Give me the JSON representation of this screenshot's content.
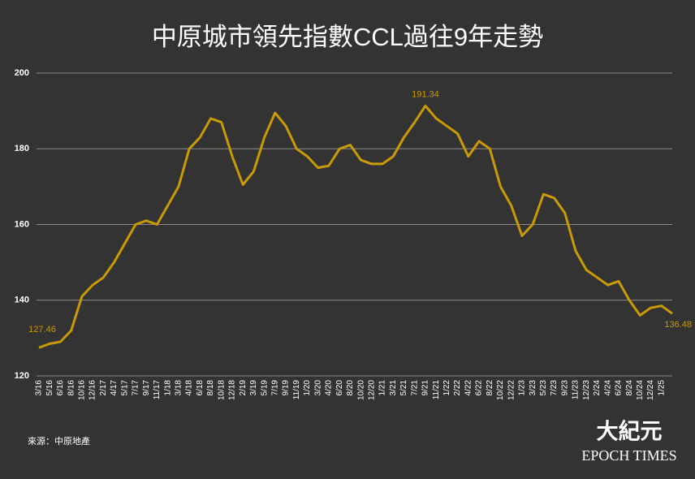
{
  "chart_data": {
    "type": "line",
    "title": "中原城市領先指數CCL過往9年走勢",
    "source": "來源：中原地產",
    "logo": "大紀元",
    "logo_subtitle": "EPOCH TIMES",
    "categories": [
      "3/16",
      "5/16",
      "6/16",
      "8/16",
      "10/16",
      "12/16",
      "2/17",
      "4/17",
      "5/17",
      "7/17",
      "9/17",
      "11/17",
      "1/18",
      "3/18",
      "4/18",
      "6/18",
      "8/18",
      "10/18",
      "12/18",
      "2/19",
      "3/19",
      "5/19",
      "7/19",
      "9/19",
      "11/19",
      "1/20",
      "3/20",
      "4/20",
      "6/20",
      "8/20",
      "10/20",
      "12/20",
      "1/21",
      "3/21",
      "5/21",
      "7/21",
      "9/21",
      "11/21",
      "1/22",
      "2/22",
      "4/22",
      "6/22",
      "8/22",
      "10/22",
      "12/22",
      "1/23",
      "3/23",
      "5/23",
      "7/23",
      "9/23",
      "11/23",
      "12/23",
      "2/24",
      "4/24",
      "6/24",
      "8/24",
      "10/24",
      "12/24",
      "1/25",
      null
    ],
    "values": [
      127.46,
      128.5,
      129,
      132,
      141,
      144,
      146,
      150,
      155,
      160,
      161,
      160,
      165,
      170,
      180,
      183,
      188,
      187,
      178,
      170.5,
      174,
      183,
      189.5,
      186,
      180,
      178,
      175,
      175.5,
      180,
      181,
      177,
      176,
      176,
      178,
      183,
      187,
      191.34,
      188,
      186,
      184,
      178,
      182,
      180,
      170,
      165,
      157,
      160,
      168,
      167,
      163,
      153,
      148,
      146,
      144,
      145,
      140,
      136,
      138,
      138.5,
      136.48
    ],
    "labeled_points": [
      0,
      36,
      59
    ],
    "color": "#c99a06",
    "ylim": [
      120,
      200
    ],
    "yticks": [
      120,
      140,
      160,
      180,
      200
    ],
    "grid": true
  }
}
